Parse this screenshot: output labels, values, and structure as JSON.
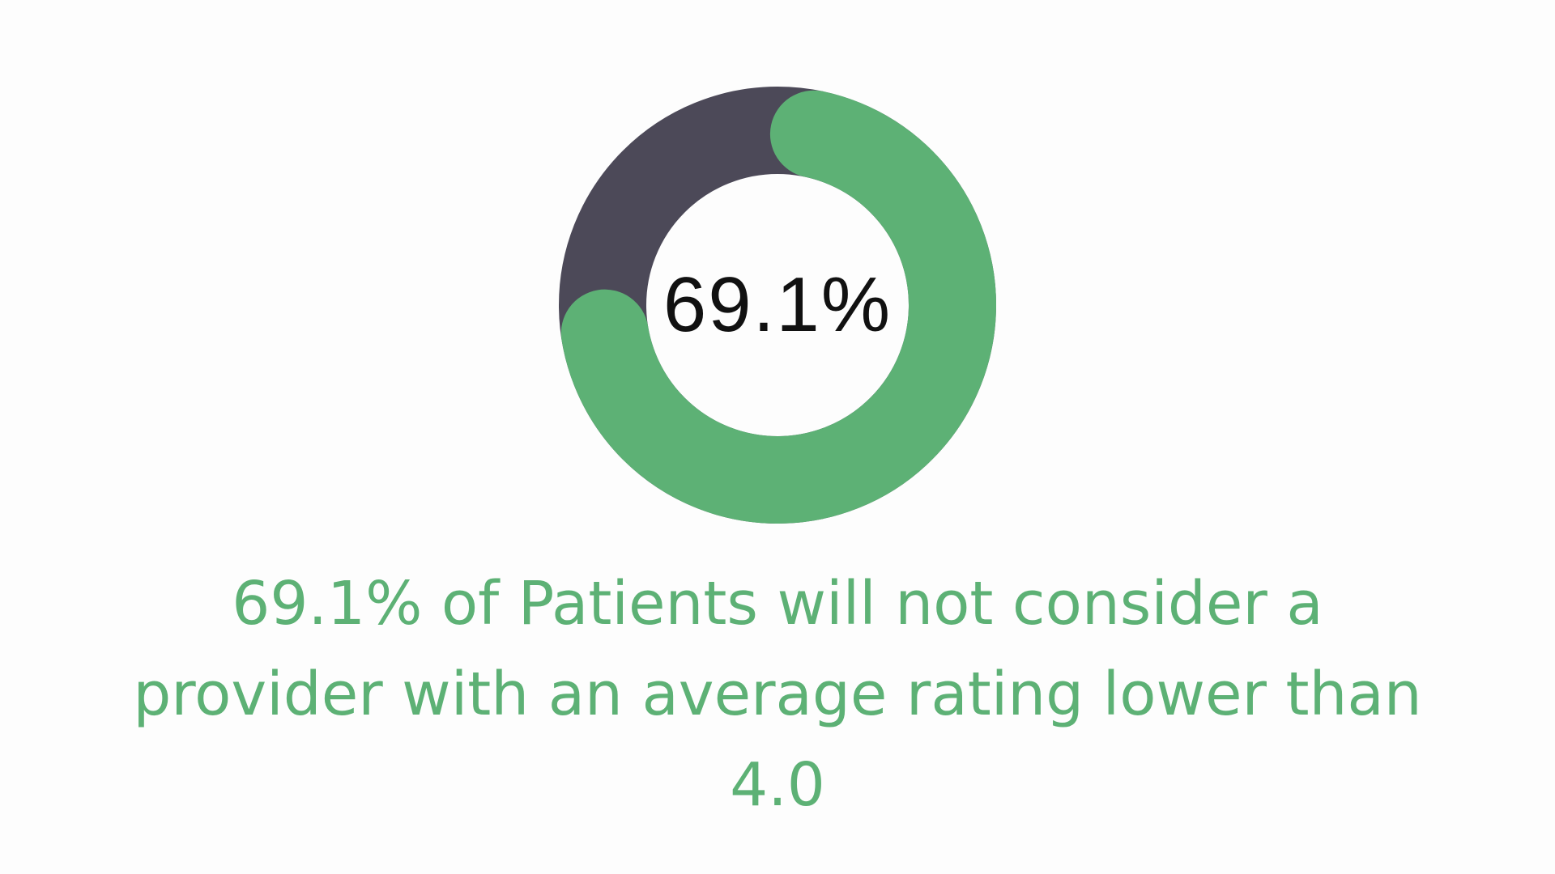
{
  "chart_data": {
    "type": "pie",
    "style": "donut",
    "values": [
      69.1,
      30.9
    ],
    "center_label": "69.1%",
    "colors": {
      "highlight": "#5db175",
      "remainder": "#4c4958"
    }
  },
  "caption": "69.1% of Patients will not consider a provider with an average rating lower than 4.0"
}
